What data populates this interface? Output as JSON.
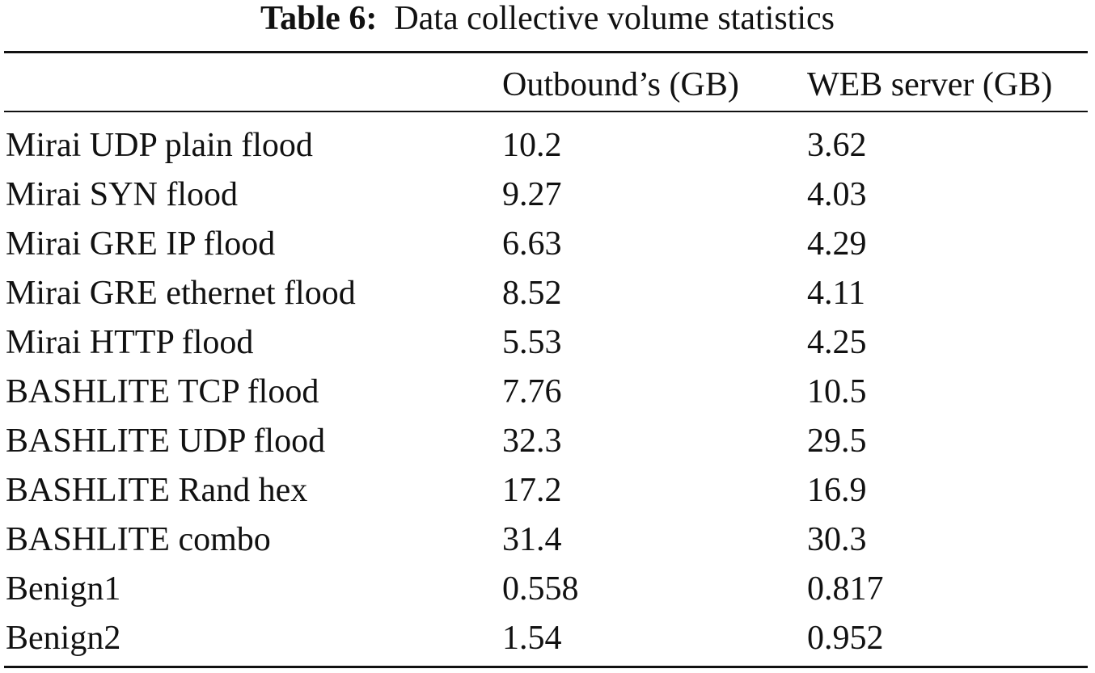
{
  "caption": {
    "label": "Table 6:",
    "text": "Data collective volume statistics"
  },
  "table": {
    "headers": {
      "attack": "",
      "outbound": "Outbound’s (GB)",
      "web_server": "WEB server (GB)"
    },
    "rows": [
      {
        "name": "Mirai UDP plain flood",
        "outbound": "10.2",
        "web": "3.62"
      },
      {
        "name": "Mirai SYN flood",
        "outbound": "9.27",
        "web": "4.03"
      },
      {
        "name": "Mirai GRE IP flood",
        "outbound": "6.63",
        "web": "4.29"
      },
      {
        "name": "Mirai GRE ethernet flood",
        "outbound": "8.52",
        "web": "4.11"
      },
      {
        "name": "Mirai HTTP flood",
        "outbound": "5.53",
        "web": "4.25"
      },
      {
        "name": "BASHLITE TCP flood",
        "outbound": "7.76",
        "web": "10.5"
      },
      {
        "name": "BASHLITE UDP flood",
        "outbound": "32.3",
        "web": "29.5"
      },
      {
        "name": "BASHLITE Rand hex",
        "outbound": "17.2",
        "web": "16.9"
      },
      {
        "name": "BASHLITE combo",
        "outbound": "31.4",
        "web": "30.3"
      },
      {
        "name": "Benign1",
        "outbound": "0.558",
        "web": "0.817"
      },
      {
        "name": "Benign2",
        "outbound": "1.54",
        "web": "0.952"
      }
    ]
  }
}
